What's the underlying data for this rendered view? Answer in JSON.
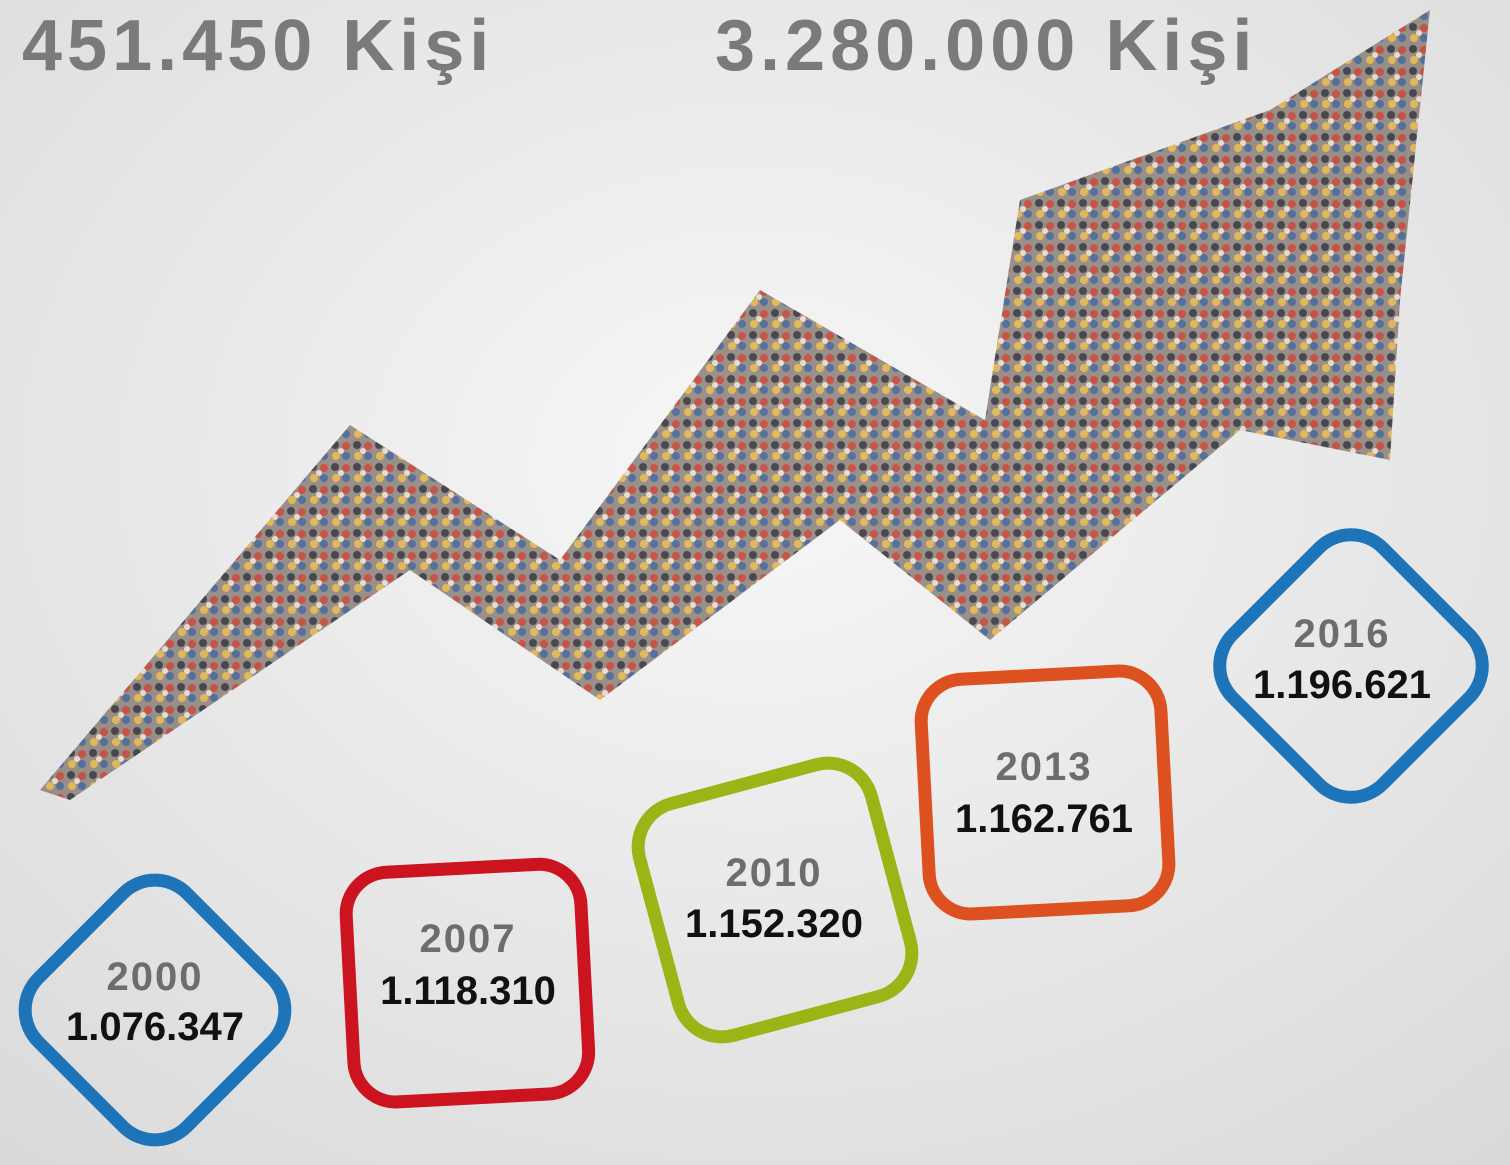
{
  "headings": [
    "451.450 Kişi",
    "3.280.000 Kişi"
  ],
  "boxes": [
    {
      "year": "2000",
      "value": "1.076.347"
    },
    {
      "year": "2007",
      "value": "1.118.310"
    },
    {
      "year": "2010",
      "value": "1.152.320"
    },
    {
      "year": "2013",
      "value": "1.162.761"
    },
    {
      "year": "2016",
      "value": "1.196.621"
    }
  ]
}
